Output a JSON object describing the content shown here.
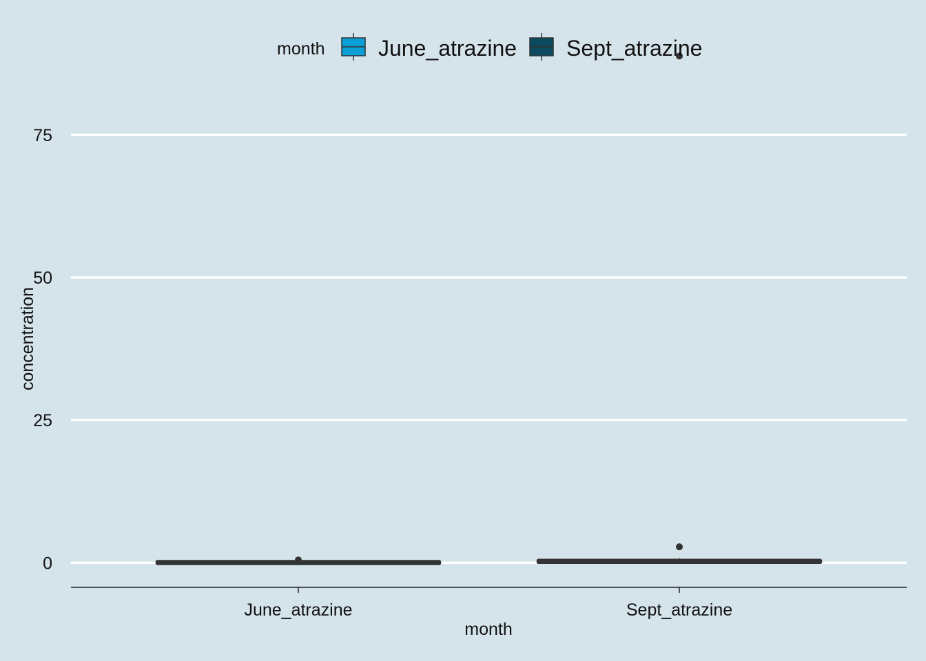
{
  "chart_data": {
    "type": "boxplot",
    "xlabel": "month",
    "ylabel": "concentration",
    "ylim": [
      -4.3,
      93.8
    ],
    "yticks": [
      0,
      25,
      50,
      75
    ],
    "y_tick_labels": [
      "0",
      "25",
      "50",
      "75"
    ],
    "categories": [
      "June_atrazine",
      "Sept_atrazine"
    ],
    "legend": {
      "title": "month",
      "position": "top",
      "entries": [
        "June_atrazine",
        "Sept_atrazine"
      ]
    },
    "series": [
      {
        "name": "June_atrazine",
        "color": "#0a9fd8",
        "q1": 0.0,
        "median": 0.05,
        "q3": 0.1,
        "whisker_low": 0.0,
        "whisker_high": 0.2,
        "outliers": [
          0.3,
          0.5
        ]
      },
      {
        "name": "Sept_atrazine",
        "color": "#0b4a5f",
        "q1": 0.1,
        "median": 0.2,
        "q3": 0.4,
        "whisker_low": 0.0,
        "whisker_high": 0.8,
        "outliers": [
          2.8,
          88.8
        ]
      }
    ],
    "grid": "horizontal-major",
    "colors": {
      "background": "#d5e4eb",
      "grid": "#ffffff",
      "box_line": "#333333",
      "axis": "#222222"
    }
  }
}
